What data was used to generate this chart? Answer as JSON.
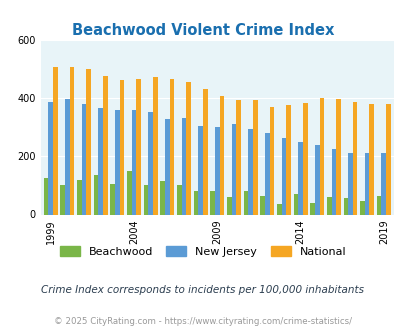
{
  "title": "Beachwood Violent Crime Index",
  "years": [
    1999,
    2000,
    2001,
    2002,
    2003,
    2004,
    2005,
    2006,
    2007,
    2008,
    2009,
    2010,
    2011,
    2012,
    2013,
    2014,
    2015,
    2016,
    2017,
    2018,
    2019
  ],
  "beachwood": [
    125,
    100,
    120,
    135,
    105,
    150,
    100,
    115,
    100,
    80,
    80,
    60,
    80,
    65,
    35,
    70,
    40,
    60,
    55,
    45,
    65
  ],
  "new_jersey": [
    385,
    395,
    378,
    365,
    358,
    358,
    352,
    328,
    330,
    305,
    300,
    310,
    295,
    280,
    262,
    250,
    240,
    225,
    210,
    210,
    210
  ],
  "national": [
    507,
    507,
    500,
    475,
    460,
    465,
    470,
    465,
    455,
    430,
    405,
    392,
    393,
    368,
    377,
    383,
    398,
    397,
    385,
    380,
    380
  ],
  "beachwood_color": "#7ab648",
  "nj_color": "#5b9bd5",
  "national_color": "#f5a623",
  "bg_color": "#e8f4f8",
  "outer_bg": "#ffffff",
  "title_color": "#1a6faf",
  "subtitle_color": "#2c3e50",
  "copyright_color": "#999999",
  "ylim": [
    0,
    600
  ],
  "yticks": [
    0,
    200,
    400,
    600
  ],
  "xlabel_years": [
    1999,
    2004,
    2009,
    2014,
    2019
  ],
  "note": "Crime Index corresponds to incidents per 100,000 inhabitants",
  "copyright": "© 2025 CityRating.com - https://www.cityrating.com/crime-statistics/"
}
